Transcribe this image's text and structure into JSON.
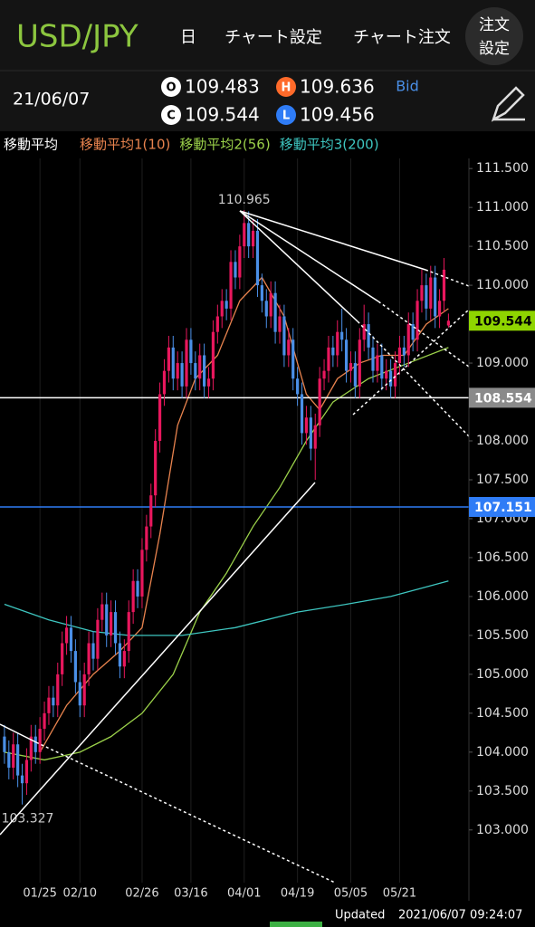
{
  "header": {
    "title": "USD/JPY",
    "menu": [
      "日",
      "チャート設定",
      "チャート注文"
    ],
    "order_button": [
      "注文",
      "設定"
    ]
  },
  "info": {
    "date": "21/06/07",
    "labels": [
      "O",
      "H",
      "C",
      "L"
    ],
    "price_type": "Bid"
  },
  "legend": {
    "title": "移動平均"
  },
  "chart_data": {
    "type": "candlestick",
    "up_color": "#e8175d",
    "down_color": "#4a8fe7",
    "last_color": "#8fd400",
    "candles": [
      [
        104.2,
        104.35,
        103.85,
        104.0
      ],
      [
        104.0,
        104.15,
        103.65,
        103.8
      ],
      [
        103.8,
        104.25,
        103.65,
        104.1
      ],
      [
        104.1,
        104.25,
        103.55,
        103.7
      ],
      [
        103.7,
        103.85,
        103.327,
        103.6
      ],
      [
        103.6,
        104.05,
        103.45,
        103.9
      ],
      [
        103.9,
        104.35,
        103.75,
        104.2
      ],
      [
        104.2,
        104.35,
        103.85,
        104.0
      ],
      [
        104.0,
        104.45,
        103.85,
        104.3
      ],
      [
        104.3,
        104.65,
        104.15,
        104.5
      ],
      [
        104.5,
        104.85,
        104.35,
        104.7
      ],
      [
        104.7,
        104.85,
        104.45,
        104.6
      ],
      [
        104.6,
        105.15,
        104.45,
        105.0
      ],
      [
        105.0,
        105.55,
        104.85,
        105.4
      ],
      [
        105.4,
        105.75,
        105.25,
        105.6
      ],
      [
        105.6,
        105.75,
        105.15,
        105.3
      ],
      [
        105.3,
        105.45,
        104.75,
        104.9
      ],
      [
        104.9,
        105.05,
        104.45,
        104.6
      ],
      [
        104.6,
        105.15,
        104.45,
        105.0
      ],
      [
        105.0,
        105.55,
        104.85,
        105.4
      ],
      [
        105.4,
        105.55,
        105.05,
        105.2
      ],
      [
        105.2,
        105.85,
        105.05,
        105.7
      ],
      [
        105.7,
        106.05,
        105.55,
        105.9
      ],
      [
        105.9,
        106.05,
        105.35,
        105.5
      ],
      [
        105.5,
        105.95,
        105.35,
        105.8
      ],
      [
        105.8,
        105.95,
        105.25,
        105.4
      ],
      [
        105.4,
        105.55,
        104.95,
        105.1
      ],
      [
        105.1,
        105.45,
        104.95,
        105.3
      ],
      [
        105.3,
        105.95,
        105.15,
        105.8
      ],
      [
        105.8,
        106.35,
        105.65,
        106.2
      ],
      [
        106.2,
        106.35,
        105.85,
        106.0
      ],
      [
        106.0,
        106.75,
        105.85,
        106.6
      ],
      [
        106.6,
        107.05,
        106.45,
        106.9
      ],
      [
        106.9,
        107.45,
        106.75,
        107.3
      ],
      [
        107.3,
        108.15,
        107.15,
        108.0
      ],
      [
        108.0,
        108.75,
        107.85,
        108.6
      ],
      [
        108.6,
        109.05,
        108.45,
        108.9
      ],
      [
        108.9,
        109.35,
        108.75,
        109.2
      ],
      [
        109.2,
        109.35,
        108.65,
        108.8
      ],
      [
        108.8,
        109.15,
        108.65,
        109.0
      ],
      [
        109.0,
        109.15,
        108.55,
        108.7
      ],
      [
        108.7,
        109.45,
        108.55,
        109.3
      ],
      [
        109.3,
        109.45,
        108.85,
        109.0
      ],
      [
        109.0,
        109.15,
        108.65,
        108.8
      ],
      [
        108.8,
        109.25,
        108.65,
        109.1
      ],
      [
        109.1,
        109.25,
        108.55,
        108.7
      ],
      [
        108.7,
        108.95,
        108.55,
        108.8
      ],
      [
        108.8,
        109.55,
        108.65,
        109.4
      ],
      [
        109.4,
        109.75,
        109.25,
        109.6
      ],
      [
        109.6,
        109.95,
        109.45,
        109.8
      ],
      [
        109.8,
        109.95,
        109.55,
        109.7
      ],
      [
        109.7,
        110.45,
        109.55,
        110.3
      ],
      [
        110.3,
        110.45,
        109.95,
        110.1
      ],
      [
        110.1,
        110.65,
        109.95,
        110.5
      ],
      [
        110.5,
        110.965,
        110.35,
        110.8
      ],
      [
        110.8,
        110.95,
        110.35,
        110.5
      ],
      [
        110.5,
        110.85,
        110.35,
        110.7
      ],
      [
        110.7,
        110.85,
        109.85,
        110.0
      ],
      [
        110.0,
        110.15,
        109.65,
        109.8
      ],
      [
        109.8,
        109.95,
        109.45,
        109.6
      ],
      [
        109.6,
        110.05,
        109.45,
        109.9
      ],
      [
        109.9,
        110.05,
        109.25,
        109.4
      ],
      [
        109.4,
        109.75,
        109.25,
        109.6
      ],
      [
        109.6,
        109.75,
        108.95,
        109.1
      ],
      [
        109.1,
        109.45,
        108.95,
        109.3
      ],
      [
        109.3,
        109.45,
        108.65,
        108.8
      ],
      [
        108.8,
        108.95,
        108.45,
        108.6
      ],
      [
        108.6,
        108.75,
        107.95,
        108.1
      ],
      [
        108.1,
        108.45,
        107.95,
        108.3
      ],
      [
        108.3,
        108.45,
        107.75,
        107.9
      ],
      [
        107.9,
        108.35,
        107.5,
        108.2
      ],
      [
        108.2,
        108.95,
        108.05,
        108.8
      ],
      [
        108.8,
        109.05,
        108.65,
        108.9
      ],
      [
        108.9,
        109.35,
        108.75,
        109.2
      ],
      [
        109.2,
        109.35,
        108.95,
        109.1
      ],
      [
        109.1,
        109.55,
        108.95,
        109.4
      ],
      [
        109.4,
        109.7,
        109.15,
        109.3
      ],
      [
        109.3,
        109.45,
        108.75,
        108.9
      ],
      [
        108.9,
        109.15,
        108.75,
        109.0
      ],
      [
        109.0,
        109.15,
        108.55,
        108.7
      ],
      [
        108.7,
        109.45,
        108.55,
        109.3
      ],
      [
        109.3,
        109.75,
        109.15,
        109.5
      ],
      [
        109.5,
        109.65,
        109.05,
        109.2
      ],
      [
        109.2,
        109.35,
        108.75,
        108.9
      ],
      [
        108.9,
        109.25,
        108.75,
        109.1
      ],
      [
        109.1,
        109.25,
        108.65,
        108.8
      ],
      [
        108.8,
        109.05,
        108.65,
        108.9
      ],
      [
        108.9,
        109.05,
        108.55,
        108.7
      ],
      [
        108.7,
        109.15,
        108.55,
        109.0
      ],
      [
        109.0,
        109.35,
        108.85,
        109.2
      ],
      [
        109.2,
        109.35,
        108.95,
        109.1
      ],
      [
        109.1,
        109.65,
        108.95,
        109.5
      ],
      [
        109.5,
        109.65,
        109.15,
        109.3
      ],
      [
        109.3,
        109.95,
        109.15,
        109.8
      ],
      [
        109.8,
        110.2,
        109.65,
        110.0
      ],
      [
        110.0,
        110.15,
        109.55,
        109.7
      ],
      [
        109.7,
        110.25,
        109.55,
        110.1
      ],
      [
        110.1,
        110.25,
        109.45,
        109.6
      ],
      [
        109.6,
        109.95,
        109.45,
        109.8
      ],
      [
        109.8,
        110.35,
        109.65,
        110.2
      ],
      [
        109.483,
        109.636,
        109.456,
        109.544
      ]
    ],
    "series": [
      {
        "name": "移動平均1(10)",
        "color": "#e8834e",
        "x": [
          8,
          14,
          20,
          26,
          31,
          35,
          39,
          43,
          48,
          53,
          58,
          63,
          68,
          71,
          75,
          80,
          85,
          90,
          95,
          100
        ],
        "values": [
          104.0,
          104.6,
          105.0,
          105.3,
          105.6,
          106.8,
          108.2,
          108.8,
          109.1,
          109.8,
          110.1,
          109.6,
          108.6,
          108.4,
          108.8,
          109.0,
          109.1,
          109.1,
          109.5,
          109.7
        ]
      },
      {
        "name": "移動平均2(56)",
        "color": "#9bd14a",
        "x": [
          0,
          9,
          17,
          24,
          31,
          38,
          44,
          50,
          56,
          62,
          68,
          74,
          82,
          91,
          100
        ],
        "values": [
          104.0,
          103.9,
          104.0,
          104.2,
          104.5,
          105.0,
          105.8,
          106.3,
          106.9,
          107.4,
          108.0,
          108.5,
          108.8,
          109.0,
          109.2
        ]
      },
      {
        "name": "移動平均3(200)",
        "color": "#3ec6c0",
        "x": [
          0,
          10,
          20,
          28,
          40,
          52,
          66,
          77,
          87,
          100
        ],
        "values": [
          105.9,
          105.7,
          105.55,
          105.5,
          105.5,
          105.6,
          105.8,
          105.9,
          106.0,
          106.2
        ]
      }
    ],
    "hlines": [
      {
        "value": 108.554,
        "color": "#ffffff"
      },
      {
        "value": 107.151,
        "color": "#2f7cf6"
      }
    ],
    "ylim": [
      102.09,
      111.63
    ],
    "yticks": [
      {
        "value": 103,
        "label": "103.000"
      },
      {
        "value": 103.5,
        "label": "103.500"
      },
      {
        "value": 104,
        "label": "104.000"
      },
      {
        "value": 104.5,
        "label": "104.500"
      },
      {
        "value": 105,
        "label": "105.000"
      },
      {
        "value": 105.5,
        "label": "105.500"
      },
      {
        "value": 106,
        "label": "106.000"
      },
      {
        "value": 106.5,
        "label": "106.500"
      },
      {
        "value": 107,
        "label": "107.000"
      },
      {
        "value": 107.5,
        "label": "107.500"
      },
      {
        "value": 108,
        "label": "108.000"
      },
      {
        "value": 108.5,
        "label": "108.500"
      },
      {
        "value": 109,
        "label": "109.000"
      },
      {
        "value": 109.5,
        "label": "109.500"
      },
      {
        "value": 110,
        "label": "110.000"
      },
      {
        "value": 110.5,
        "label": "110.500"
      },
      {
        "value": 111,
        "label": "111.000"
      },
      {
        "value": 111.5,
        "label": "111.500"
      }
    ],
    "xlim": [
      -1,
      104
    ],
    "xticks": [
      {
        "value": 8,
        "label": "01/25"
      },
      {
        "value": 17,
        "label": "02/10"
      },
      {
        "value": 31,
        "label": "02/26"
      },
      {
        "value": 42,
        "label": "03/16"
      },
      {
        "value": 54,
        "label": "04/01"
      },
      {
        "value": 66,
        "label": "04/19"
      },
      {
        "value": 78,
        "label": "05/05"
      },
      {
        "value": 89,
        "label": "05/21"
      }
    ]
  },
  "footer": {
    "label": "Updated",
    "timestamp": "2021/06/07 09:24:07"
  }
}
